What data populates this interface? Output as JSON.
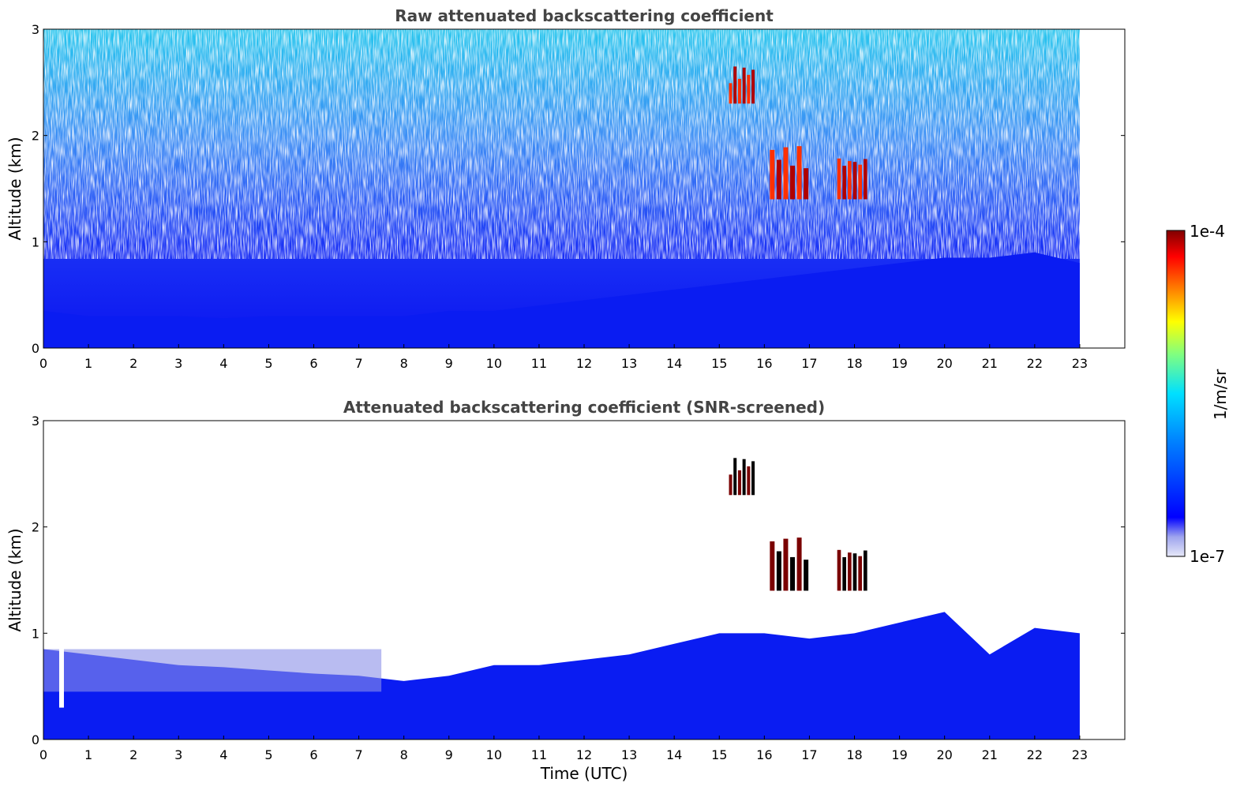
{
  "chart_data": [
    {
      "type": "heatmap",
      "title": "Raw attenuated backscattering coefficient",
      "xlabel": "",
      "ylabel": "Altitude (km)",
      "xlim": [
        0,
        24
      ],
      "ylim": [
        0,
        3
      ],
      "x_ticks": [
        0,
        1,
        2,
        3,
        4,
        5,
        6,
        7,
        8,
        9,
        10,
        11,
        12,
        13,
        14,
        15,
        16,
        17,
        18,
        19,
        20,
        21,
        22,
        23
      ],
      "y_ticks": [
        0,
        1,
        2,
        3
      ],
      "data_time_range": [
        0,
        23
      ],
      "log_scale_color": true,
      "features": [
        {
          "kind": "aerosol_layer",
          "t_start": 0,
          "t_end": 23,
          "alt_top_km": [
            0.35,
            0.3,
            0.3,
            0.3,
            0.28,
            0.3,
            0.3,
            0.3,
            0.3,
            0.35,
            0.35,
            0.4,
            0.45,
            0.5,
            0.55,
            0.6,
            0.65,
            0.7,
            0.75,
            0.8,
            0.85,
            0.85,
            0.9,
            0.8
          ]
        },
        {
          "kind": "cloud",
          "t_start": 15.2,
          "t_end": 15.8,
          "alt_km": [
            2.3,
            2.65
          ]
        },
        {
          "kind": "cloud",
          "t_start": 16.1,
          "t_end": 17.0,
          "alt_km": [
            1.4,
            1.9
          ]
        },
        {
          "kind": "cloud",
          "t_start": 17.6,
          "t_end": 18.3,
          "alt_km": [
            1.4,
            1.8
          ]
        }
      ]
    },
    {
      "type": "heatmap",
      "title": "Attenuated backscattering coefficient (SNR-screened)",
      "xlabel": "Time (UTC)",
      "ylabel": "Altitude (km)",
      "xlim": [
        0,
        24
      ],
      "ylim": [
        0,
        3
      ],
      "x_ticks": [
        0,
        1,
        2,
        3,
        4,
        5,
        6,
        7,
        8,
        9,
        10,
        11,
        12,
        13,
        14,
        15,
        16,
        17,
        18,
        19,
        20,
        21,
        22,
        23
      ],
      "y_ticks": [
        0,
        1,
        2,
        3
      ],
      "data_time_range": [
        0,
        23
      ],
      "log_scale_color": true,
      "features": [
        {
          "kind": "screened_layer_top_km",
          "t": [
            0,
            1,
            2,
            3,
            4,
            5,
            6,
            7,
            8,
            9,
            10,
            11,
            12,
            13,
            14,
            15,
            16,
            17,
            18,
            19,
            20,
            21,
            22,
            23
          ],
          "top_km": [
            0.85,
            0.8,
            0.75,
            0.7,
            0.68,
            0.65,
            0.62,
            0.6,
            0.55,
            0.6,
            0.7,
            0.7,
            0.75,
            0.8,
            0.9,
            1.0,
            1.0,
            0.95,
            1.0,
            1.1,
            1.2,
            0.8,
            1.05,
            1.0
          ]
        },
        {
          "kind": "cloud",
          "t_start": 15.2,
          "t_end": 15.8,
          "alt_km": [
            2.3,
            2.65
          ]
        },
        {
          "kind": "cloud",
          "t_start": 16.1,
          "t_end": 17.0,
          "alt_km": [
            1.4,
            1.9
          ]
        },
        {
          "kind": "cloud",
          "t_start": 17.6,
          "t_end": 18.3,
          "alt_km": [
            1.4,
            1.8
          ]
        }
      ]
    }
  ],
  "colorbar": {
    "label": "1/m/sr",
    "max_label": "1e-4",
    "min_label": "1e-7",
    "colormap": "jet-like",
    "colors": [
      "#e6e8f8",
      "#9ea4ee",
      "#0000ff",
      "#0080ff",
      "#00e0ff",
      "#80ff80",
      "#ffff00",
      "#ff8000",
      "#ff0000",
      "#800000"
    ]
  }
}
